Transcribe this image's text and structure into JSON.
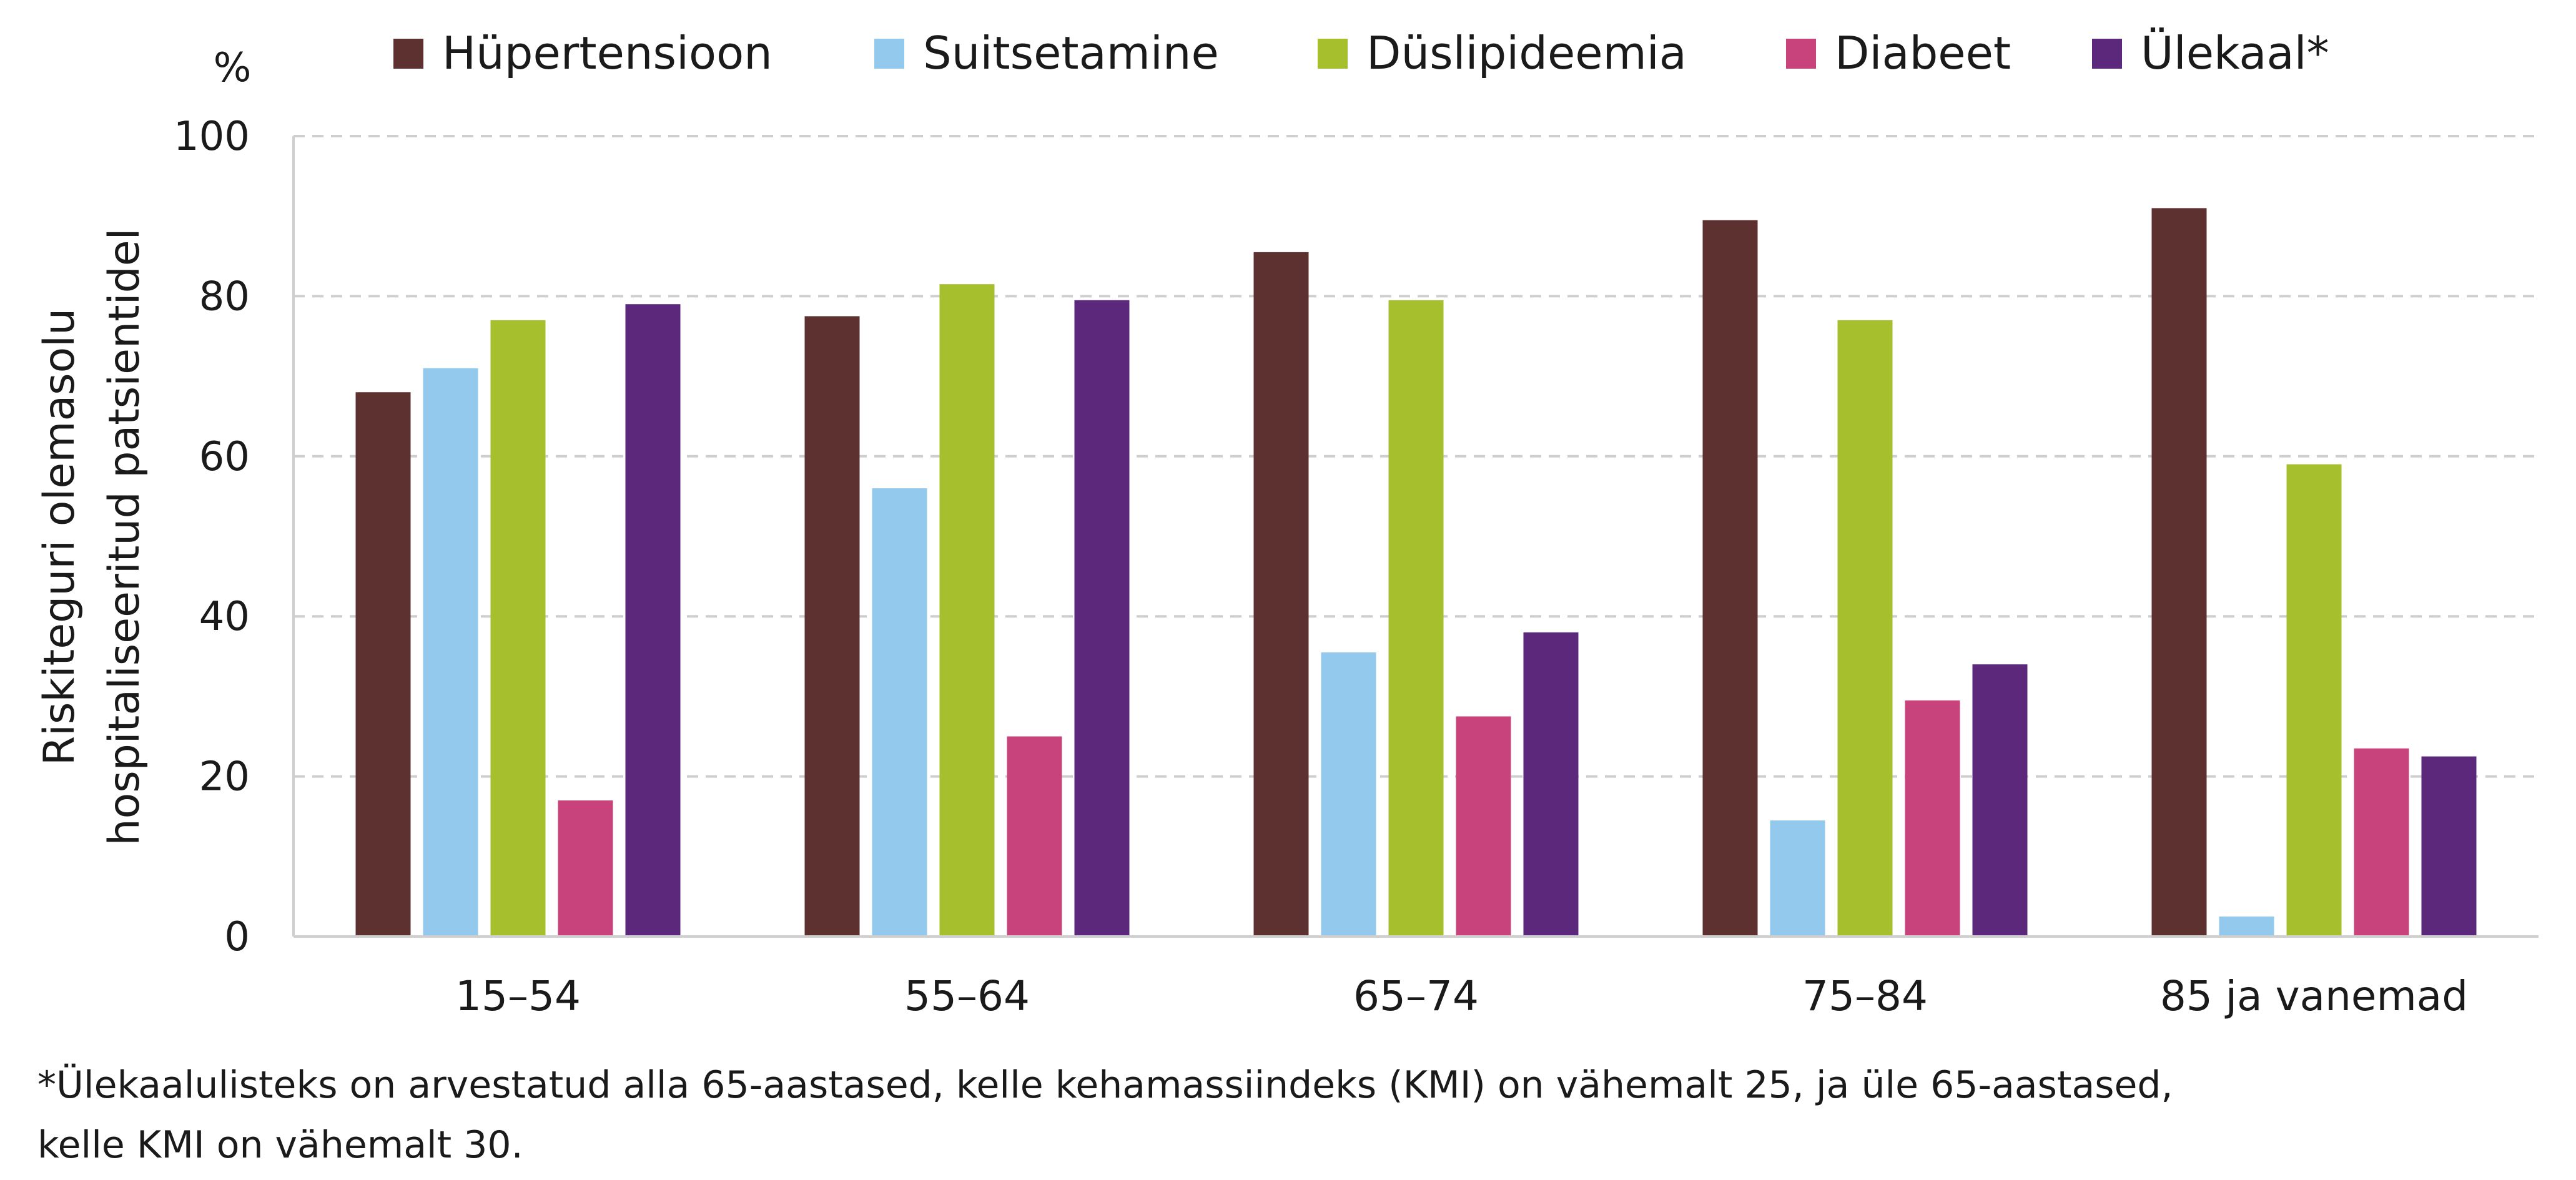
{
  "chart_data": {
    "type": "bar",
    "unit_label": "%",
    "ylabel_lines": [
      "Riskiteguri olemasolu",
      "hospitaliseeritud patsientidel"
    ],
    "ylim": [
      0,
      100
    ],
    "yticks": [
      0,
      20,
      40,
      60,
      80,
      100
    ],
    "grid": true,
    "legend_position": "top",
    "categories": [
      "15–54",
      "55–64",
      "65–74",
      "75–84",
      "85 ja vanemad"
    ],
    "series": [
      {
        "name": "Hüpertensioon",
        "color": "#5c3130",
        "values": [
          68,
          77.5,
          85.5,
          89.5,
          91
        ]
      },
      {
        "name": "Suitsetamine",
        "color": "#92c9ec",
        "values": [
          71,
          56,
          35.5,
          14.5,
          2.5
        ]
      },
      {
        "name": "Düslipideemia",
        "color": "#a6bf2d",
        "values": [
          77,
          81.5,
          79.5,
          77,
          59
        ]
      },
      {
        "name": "Diabeet",
        "color": "#c8437c",
        "values": [
          17,
          25,
          27.5,
          29.5,
          23.5
        ]
      },
      {
        "name": "Ülekaal*",
        "color": "#5b287c",
        "values": [
          79,
          79.5,
          38,
          34,
          22.5
        ]
      }
    ]
  },
  "footnote_lines": [
    "*Ülekaalulisteks on arvestatud alla 65-aastased, kelle kehamassiindeks (KMI) on vähemalt 25, ja üle 65-aastased,",
    "kelle KMI on vähemalt 30."
  ]
}
